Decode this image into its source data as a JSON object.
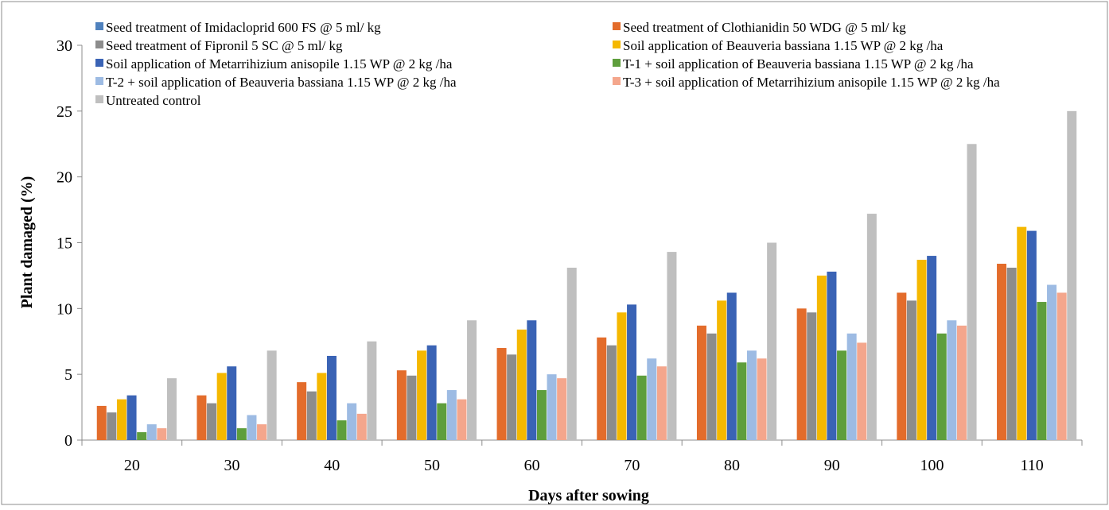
{
  "chart_data": {
    "type": "bar",
    "title": "",
    "xlabel": "Days after sowing",
    "ylabel": "Plant damaged (%)",
    "ylim": [
      0,
      30
    ],
    "yticks": [
      0,
      5,
      10,
      15,
      20,
      25,
      30
    ],
    "grid": false,
    "legend_position": "top",
    "categories": [
      "20",
      "30",
      "40",
      "50",
      "60",
      "70",
      "80",
      "90",
      "100",
      "110"
    ],
    "series": [
      {
        "name": "Seed treatment of Imidacloprid 600 FS @ 5 ml/ kg",
        "color": "#4F81BD",
        "values": [
          0,
          0,
          0,
          0,
          0,
          0,
          0,
          0,
          0,
          0
        ]
      },
      {
        "name": "Seed treatment of Clothianidin 50 WDG @ 5 ml/ kg",
        "color": "#E36C2B",
        "values": [
          2.6,
          3.4,
          4.4,
          5.3,
          7.0,
          7.8,
          8.7,
          10.0,
          11.2,
          13.4
        ]
      },
      {
        "name": "Seed treatment of Fipronil 5 SC @ 5 ml/ kg",
        "color": "#8C8C8C",
        "values": [
          2.1,
          2.8,
          3.7,
          4.9,
          6.5,
          7.2,
          8.1,
          9.7,
          10.6,
          13.1
        ]
      },
      {
        "name": "Soil application of Beauveria bassiana 1.15 WP @ 2 kg /ha",
        "color": "#F5B800",
        "values": [
          3.1,
          5.1,
          5.1,
          6.8,
          8.4,
          9.7,
          10.6,
          12.5,
          13.7,
          16.2
        ]
      },
      {
        "name": "Soil application of Metarrihizium anisopile 1.15 WP @ 2 kg /ha",
        "color": "#3A63B5",
        "values": [
          3.4,
          5.6,
          6.4,
          7.2,
          9.1,
          10.3,
          11.2,
          12.8,
          14.0,
          15.9
        ]
      },
      {
        "name": "T-1 + soil application of Beauveria bassiana 1.15 WP @ 2 kg /ha",
        "color": "#5E9E3C",
        "values": [
          0.6,
          0.9,
          1.5,
          2.8,
          3.8,
          4.9,
          5.9,
          6.8,
          8.1,
          10.5
        ]
      },
      {
        "name": "T-2 + soil application of Beauveria bassiana 1.15 WP @ 2 kg /ha",
        "color": "#9DBBE3",
        "values": [
          1.2,
          1.9,
          2.8,
          3.8,
          5.0,
          6.2,
          6.8,
          8.1,
          9.1,
          11.8
        ]
      },
      {
        "name": "T-3 + soil application of Metarrihizium anisopile 1.15 WP @ 2 kg /ha",
        "color": "#F4A68C",
        "values": [
          0.9,
          1.2,
          2.0,
          3.1,
          4.7,
          5.6,
          6.2,
          7.4,
          8.7,
          11.2
        ]
      },
      {
        "name": "Untreated control",
        "color": "#BFBFBF",
        "values": [
          4.7,
          6.8,
          7.5,
          9.1,
          13.1,
          14.3,
          15.0,
          17.2,
          22.5,
          25.0
        ]
      }
    ]
  }
}
